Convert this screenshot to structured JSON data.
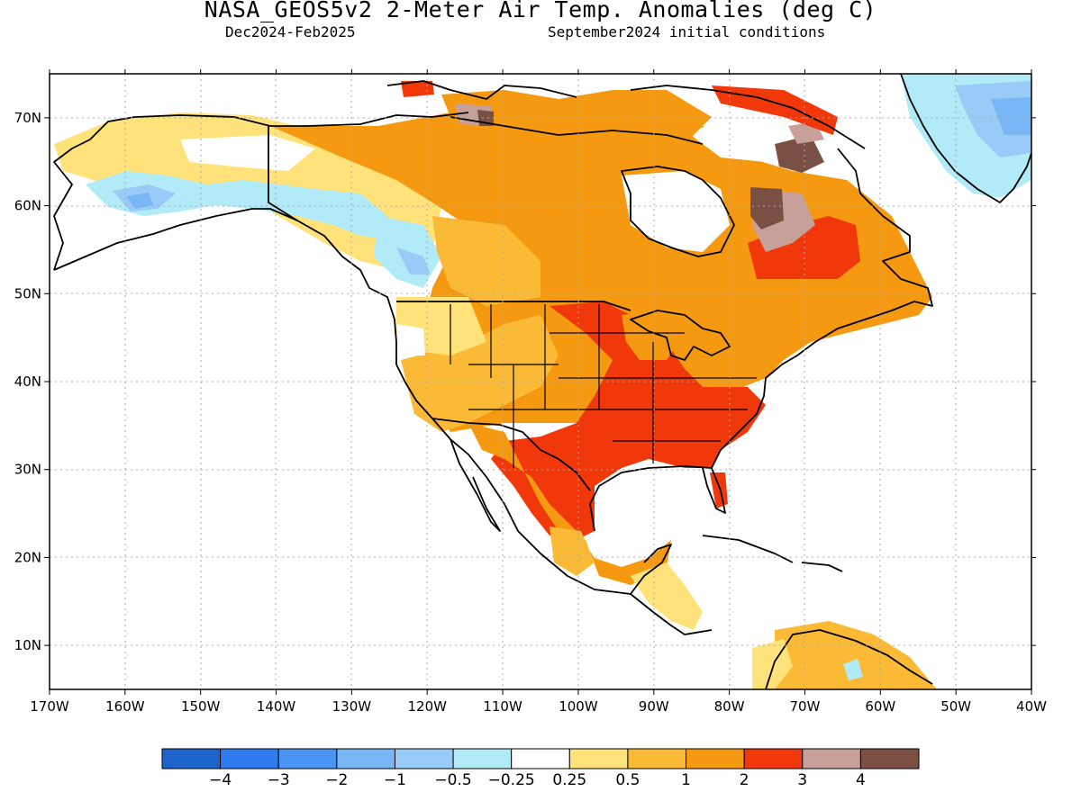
{
  "header": {
    "title": "NASA_GEOS5v2 2-Meter Air Temp. Anomalies (deg C)",
    "period": "Dec2024-Feb2025",
    "init": "September2024 initial conditions"
  },
  "axes": {
    "lon_labels": [
      "170W",
      "160W",
      "150W",
      "140W",
      "130W",
      "120W",
      "110W",
      "100W",
      "90W",
      "80W",
      "70W",
      "60W",
      "50W",
      "40W"
    ],
    "lat_labels": [
      "70N",
      "60N",
      "50N",
      "40N",
      "30N",
      "20N",
      "10N"
    ],
    "lon_range": [
      -170,
      -40
    ],
    "lat_range": [
      5,
      75
    ]
  },
  "colorbar": {
    "colors": [
      "#1d63cc",
      "#2f7cf0",
      "#4a95f3",
      "#78b6f6",
      "#98cbf8",
      "#b2ebf8",
      "#ffffff",
      "#ffe27a",
      "#fbba35",
      "#f59a10",
      "#f0380a",
      "#c8a09a",
      "#7a5045"
    ],
    "labels": [
      "−4",
      "−3",
      "−2",
      "−1",
      "−0.5",
      "−0.25",
      "0.25",
      "0.5",
      "1",
      "2",
      "3",
      "4"
    ]
  },
  "legend_colors": {
    "land_outline": "#000000",
    "ocean": "#ffffff",
    "grid": "#aaaaaa"
  }
}
